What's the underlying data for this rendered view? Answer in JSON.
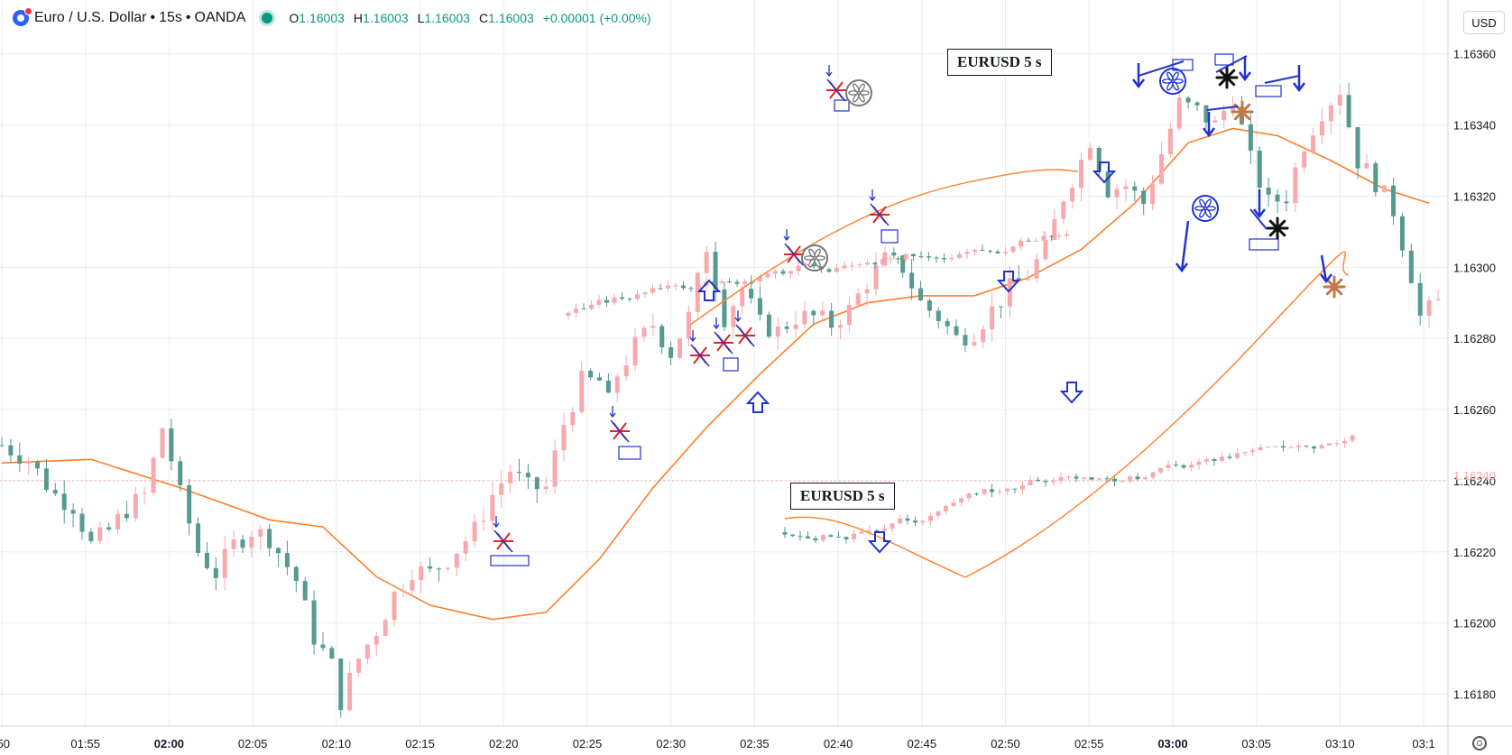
{
  "header": {
    "symbol": "Euro / U.S. Dollar",
    "sep": "•",
    "interval": "15s",
    "exchange": "OANDA",
    "ohlc": {
      "o_label": "O",
      "o": "1.16003",
      "h_label": "H",
      "h": "1.16003",
      "l_label": "L",
      "l": "1.16003",
      "c_label": "C",
      "c": "1.16003",
      "change": "+0.00001 (+0.00%)"
    }
  },
  "currency_button": "USD",
  "last_price_label": "1.16240",
  "annotation_boxes": [
    "EURUSD  5 s",
    "EURUSD  5 s"
  ],
  "colors": {
    "up": "#f7a9ae",
    "down": "#55998f",
    "ma": "#ff7f2a",
    "grid": "#e8edf2",
    "marker_blue": "#2233cc",
    "marker_red": "#e0222a",
    "marker_brown": "#c07a4a"
  },
  "chart_data": {
    "type": "candlestick",
    "symbol": "EURUSD",
    "y_axis": {
      "ticks": [
        "1.16360",
        "1.16340",
        "1.16320",
        "1.16300",
        "1.16280",
        "1.16260",
        "1.16240",
        "1.16220",
        "1.16200",
        "1.16180"
      ],
      "range": [
        1.16171,
        1.16365
      ]
    },
    "x_axis": {
      "ticks": [
        ":50",
        "01:55",
        "02:00",
        "02:05",
        "02:10",
        "02:15",
        "02:20",
        "02:25",
        "02:30",
        "02:35",
        "02:40",
        "02:45",
        "02:50",
        "02:55",
        "03:00",
        "03:05",
        "03:10",
        "03:1"
      ],
      "bold_ticks": [
        "02:00",
        "03:00"
      ]
    },
    "main_series_close": [
      [
        0.0,
        1.1625
      ],
      [
        3.0,
        1.16246
      ],
      [
        5.0,
        1.16239
      ],
      [
        6.0,
        1.16236
      ],
      [
        8.0,
        1.16233
      ],
      [
        10.0,
        1.16222
      ],
      [
        12.0,
        1.16226
      ],
      [
        14.0,
        1.16232
      ],
      [
        16.0,
        1.16236
      ],
      [
        18.0,
        1.16255
      ],
      [
        19.0,
        1.16246
      ],
      [
        20.0,
        1.16236
      ],
      [
        22.0,
        1.1622
      ],
      [
        24.0,
        1.16214
      ],
      [
        26.0,
        1.16222
      ],
      [
        28.0,
        1.16226
      ],
      [
        30.0,
        1.16224
      ],
      [
        31.0,
        1.1622
      ],
      [
        33.0,
        1.16212
      ],
      [
        35.0,
        1.16196
      ],
      [
        37.0,
        1.16188
      ],
      [
        38.0,
        1.16178
      ],
      [
        40.0,
        1.1619
      ],
      [
        42.0,
        1.16198
      ],
      [
        44.0,
        1.16208
      ],
      [
        46.0,
        1.16215
      ],
      [
        48.0,
        1.16214
      ],
      [
        50.0,
        1.16218
      ],
      [
        53.0,
        1.16226
      ],
      [
        55.0,
        1.16236
      ],
      [
        57.0,
        1.16243
      ],
      [
        59.0,
        1.16238
      ],
      [
        61.0,
        1.16238
      ],
      [
        63.0,
        1.16256
      ],
      [
        65.0,
        1.16268
      ],
      [
        67.0,
        1.16268
      ],
      [
        68.0,
        1.16262
      ],
      [
        69.0,
        1.1627
      ],
      [
        71.0,
        1.16278
      ],
      [
        73.0,
        1.16284
      ],
      [
        75.0,
        1.16276
      ],
      [
        77.0,
        1.16286
      ],
      [
        79.0,
        1.16306
      ],
      [
        81.0,
        1.16286
      ],
      [
        83.0,
        1.16294
      ],
      [
        85.0,
        1.16284
      ],
      [
        87.0,
        1.16282
      ],
      [
        89.0,
        1.16286
      ],
      [
        91.0,
        1.16286
      ],
      [
        93.0,
        1.16284
      ],
      [
        95.0,
        1.16288
      ],
      [
        97.0,
        1.16296
      ],
      [
        99.0,
        1.16302
      ],
      [
        101.0,
        1.163
      ],
      [
        103.0,
        1.1629
      ],
      [
        105.0,
        1.16286
      ],
      [
        107.0,
        1.1628
      ],
      [
        109.0,
        1.16282
      ],
      [
        111.0,
        1.16288
      ],
      [
        113.0,
        1.16294
      ],
      [
        115.0,
        1.16298
      ],
      [
        117.0,
        1.16305
      ],
      [
        119.0,
        1.1632
      ],
      [
        121.0,
        1.1633
      ],
      [
        122.0,
        1.16336
      ],
      [
        124.0,
        1.16322
      ],
      [
        126.0,
        1.16323
      ],
      [
        128.0,
        1.16318
      ],
      [
        130.0,
        1.16332
      ],
      [
        132.0,
        1.16346
      ],
      [
        134.0,
        1.16344
      ],
      [
        136.0,
        1.1634
      ],
      [
        138.0,
        1.16348
      ],
      [
        140.0,
        1.1633
      ],
      [
        142.0,
        1.16318
      ],
      [
        144.0,
        1.1632
      ],
      [
        146.0,
        1.16335
      ],
      [
        148.0,
        1.16344
      ],
      [
        150.0,
        1.1635
      ],
      [
        152.0,
        1.1633
      ],
      [
        154.0,
        1.16324
      ],
      [
        156.0,
        1.16316
      ],
      [
        158.0,
        1.16298
      ],
      [
        159.0,
        1.16286
      ],
      [
        161.0,
        1.1629
      ]
    ],
    "moving_averages": [
      {
        "points": [
          [
            0,
            1.16245
          ],
          [
            10,
            1.16246
          ],
          [
            20,
            1.16238
          ],
          [
            30,
            1.16229
          ],
          [
            36,
            1.16227
          ],
          [
            42,
            1.16213
          ],
          [
            48,
            1.16205
          ],
          [
            55,
            1.16201
          ],
          [
            61,
            1.16203
          ],
          [
            67,
            1.16218
          ],
          [
            73,
            1.16238
          ],
          [
            79,
            1.16255
          ],
          [
            85,
            1.1627
          ],
          [
            91,
            1.16284
          ],
          [
            97,
            1.1629
          ],
          [
            103,
            1.16292
          ],
          [
            109,
            1.16292
          ],
          [
            115,
            1.16297
          ],
          [
            121,
            1.16305
          ],
          [
            127,
            1.16318
          ],
          [
            133,
            1.16335
          ],
          [
            138,
            1.16339
          ],
          [
            143,
            1.16337
          ],
          [
            149,
            1.1633
          ],
          [
            155,
            1.16322
          ],
          [
            160,
            1.16318
          ]
        ]
      }
    ],
    "overlay_inset_prices": [
      "1.16360",
      "1.16240"
    ],
    "markers": {
      "red_stars": 10,
      "blue_arrows": 20,
      "blue_boxes": 9,
      "gray_wheels": 2,
      "blue_wheels": 2,
      "black_stars": 2,
      "brown_stars": 2
    }
  }
}
